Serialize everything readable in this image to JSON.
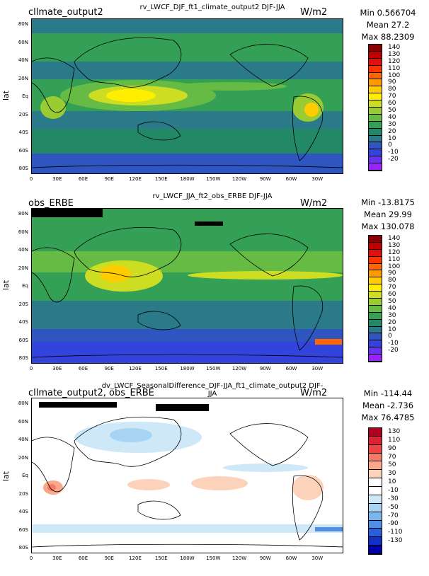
{
  "panels": [
    {
      "left_title": "cllmate_output2",
      "center_title": "rv_LWCF_DJF_ft1_climate_output2  DJF-JJA",
      "units": "W/m2",
      "stats": {
        "min": "Min 0.566704",
        "mean": "Mean 27.2",
        "max": "Max 88.2309"
      },
      "ylabel": "lat",
      "colorbar_labels": [
        "140",
        "130",
        "120",
        "110",
        "100",
        "90",
        "80",
        "70",
        "60",
        "50",
        "40",
        "30",
        "20",
        "10",
        "0",
        "-10",
        "-20"
      ],
      "colorbar_colors": [
        "#8b0000",
        "#c00000",
        "#e01010",
        "#ff3300",
        "#ff6600",
        "#ff9900",
        "#ffcc00",
        "#ffee00",
        "#ccdd22",
        "#99cc33",
        "#66bb44",
        "#33a055",
        "#228866",
        "#2a7a8a",
        "#2f55c0",
        "#3344dd",
        "#6633ee",
        "#9922ff"
      ]
    },
    {
      "left_title": "obs_ERBE",
      "center_title": "rv_LWCF_JJA_ft2_obs_ERBE  DJF-JJA",
      "units": "W/m2",
      "stats": {
        "min": "Min -13.8175",
        "mean": "Mean 29.99",
        "max": "Max 130.078"
      },
      "ylabel": "lat",
      "colorbar_labels": [
        "140",
        "130",
        "120",
        "110",
        "100",
        "90",
        "80",
        "70",
        "60",
        "50",
        "40",
        "30",
        "20",
        "10",
        "0",
        "-10",
        "-20"
      ],
      "colorbar_colors": [
        "#8b0000",
        "#c00000",
        "#e01010",
        "#ff3300",
        "#ff6600",
        "#ff9900",
        "#ffcc00",
        "#ffee00",
        "#ccdd22",
        "#99cc33",
        "#66bb44",
        "#33a055",
        "#228866",
        "#2a7a8a",
        "#2f55c0",
        "#3344dd",
        "#6633ee",
        "#9922ff"
      ]
    },
    {
      "left_title": "cllmate_output2, obs_ERBE",
      "center_title": "dv_LWCF_SeasonalDifference_DJF-JJA_ft1_climate_output2  DJF-JJA",
      "units": "W/m2",
      "stats": {
        "min": "Min -114.44",
        "mean": "Mean -2.736",
        "max": "Max 76.4785"
      },
      "ylabel": "lat",
      "colorbar_labels": [
        "130",
        "110",
        "90",
        "70",
        "50",
        "30",
        "10",
        "-10",
        "-30",
        "-50",
        "-70",
        "-90",
        "-110",
        "-130"
      ],
      "colorbar_colors": [
        "#b00020",
        "#dd2233",
        "#ee4444",
        "#f57a66",
        "#f9a98a",
        "#fcd2bb",
        "#ffffff",
        "#ffffff",
        "#cfe8f8",
        "#a8d4f4",
        "#7ab6ee",
        "#4f8fe6",
        "#2a5fdc",
        "#1030c8",
        "#0000aa"
      ]
    }
  ],
  "lat_ticks": [
    "80N",
    "60N",
    "40N",
    "20N",
    "Eq",
    "20S",
    "40S",
    "60S",
    "80S"
  ],
  "lon_ticks": [
    "0",
    "30E",
    "60E",
    "90E",
    "120E",
    "150E",
    "180W",
    "150W",
    "120W",
    "90W",
    "60W",
    "30W"
  ]
}
